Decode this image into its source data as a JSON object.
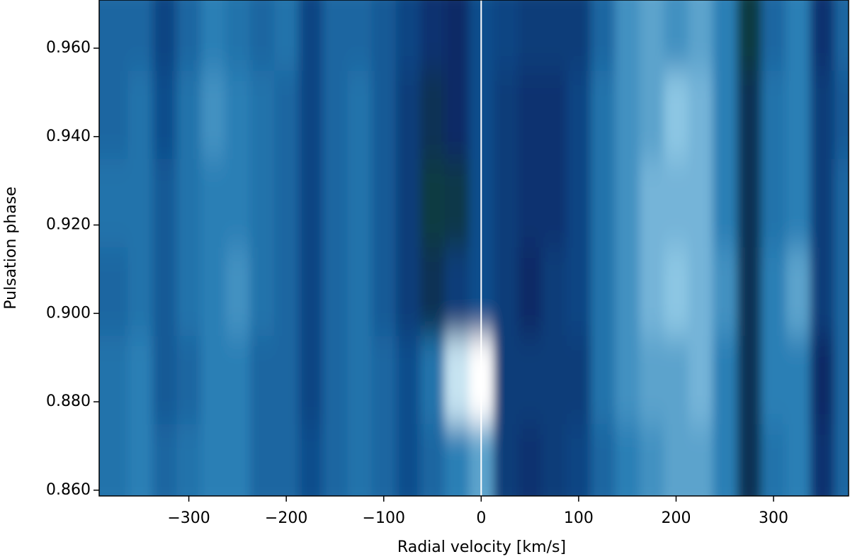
{
  "chart_data": {
    "type": "heatmap",
    "xlabel": "Radial velocity [km/s]",
    "ylabel": "Pulsation phase",
    "x": [
      -375,
      -350,
      -325,
      -300,
      -275,
      -250,
      -225,
      -200,
      -175,
      -150,
      -125,
      -100,
      -75,
      -50,
      -25,
      0,
      25,
      50,
      75,
      100,
      125,
      150,
      175,
      200,
      225,
      250,
      275,
      300,
      325,
      350,
      375
    ],
    "y": [
      0.865,
      0.885,
      0.905,
      0.925,
      0.945,
      0.965
    ],
    "values": [
      [
        0.55,
        0.6,
        0.5,
        0.55,
        0.6,
        0.6,
        0.5,
        0.5,
        0.4,
        0.5,
        0.55,
        0.5,
        0.4,
        0.5,
        0.6,
        0.7,
        0.3,
        0.25,
        0.3,
        0.35,
        0.5,
        0.6,
        0.65,
        0.7,
        0.7,
        0.6,
        0.15,
        0.55,
        0.6,
        0.25,
        0.5
      ],
      [
        0.55,
        0.6,
        0.45,
        0.5,
        0.6,
        0.6,
        0.5,
        0.5,
        0.35,
        0.5,
        0.55,
        0.5,
        0.4,
        0.55,
        0.9,
        1.0,
        0.3,
        0.3,
        0.3,
        0.3,
        0.55,
        0.65,
        0.7,
        0.7,
        0.75,
        0.6,
        0.15,
        0.6,
        0.6,
        0.2,
        0.5
      ],
      [
        0.5,
        0.55,
        0.45,
        0.55,
        0.6,
        0.65,
        0.55,
        0.5,
        0.35,
        0.5,
        0.55,
        0.45,
        0.3,
        0.15,
        0.3,
        0.4,
        0.3,
        0.2,
        0.3,
        0.35,
        0.55,
        0.65,
        0.75,
        0.8,
        0.75,
        0.65,
        0.15,
        0.6,
        0.7,
        0.3,
        0.5
      ],
      [
        0.55,
        0.55,
        0.45,
        0.55,
        0.6,
        0.6,
        0.55,
        0.5,
        0.35,
        0.5,
        0.55,
        0.45,
        0.3,
        0.1,
        0.12,
        0.4,
        0.3,
        0.25,
        0.25,
        0.35,
        0.55,
        0.65,
        0.75,
        0.75,
        0.75,
        0.6,
        0.15,
        0.55,
        0.6,
        0.3,
        0.5
      ],
      [
        0.5,
        0.55,
        0.4,
        0.55,
        0.65,
        0.6,
        0.55,
        0.5,
        0.35,
        0.5,
        0.55,
        0.45,
        0.3,
        0.15,
        0.2,
        0.4,
        0.3,
        0.25,
        0.25,
        0.35,
        0.55,
        0.65,
        0.7,
        0.8,
        0.75,
        0.6,
        0.15,
        0.55,
        0.6,
        0.3,
        0.45
      ],
      [
        0.5,
        0.5,
        0.35,
        0.5,
        0.6,
        0.55,
        0.5,
        0.55,
        0.35,
        0.5,
        0.5,
        0.45,
        0.35,
        0.25,
        0.2,
        0.4,
        0.35,
        0.3,
        0.3,
        0.3,
        0.5,
        0.65,
        0.7,
        0.65,
        0.7,
        0.6,
        0.1,
        0.5,
        0.6,
        0.25,
        0.5
      ]
    ],
    "colormap": [
      "#0d4a1e",
      "#082a66",
      "#0a4d8c",
      "#2a7fb5",
      "#8cc6e3",
      "#ffffff"
    ],
    "vline": 0,
    "vline_color": "#ffffff",
    "xlim": [
      -392,
      377
    ],
    "ylim": [
      0.8587,
      0.9709
    ],
    "xticks": [
      {
        "value": -300,
        "label": "−300"
      },
      {
        "value": -200,
        "label": "−200"
      },
      {
        "value": -100,
        "label": "−100"
      },
      0,
      100,
      200,
      300
    ],
    "yticks": [
      {
        "value": 0.86,
        "label": "0.860"
      },
      {
        "value": 0.88,
        "label": "0.880"
      },
      {
        "value": 0.9,
        "label": "0.900"
      },
      {
        "value": 0.92,
        "label": "0.920"
      },
      {
        "value": 0.94,
        "label": "0.940"
      },
      {
        "value": 0.96,
        "label": "0.960"
      }
    ]
  }
}
